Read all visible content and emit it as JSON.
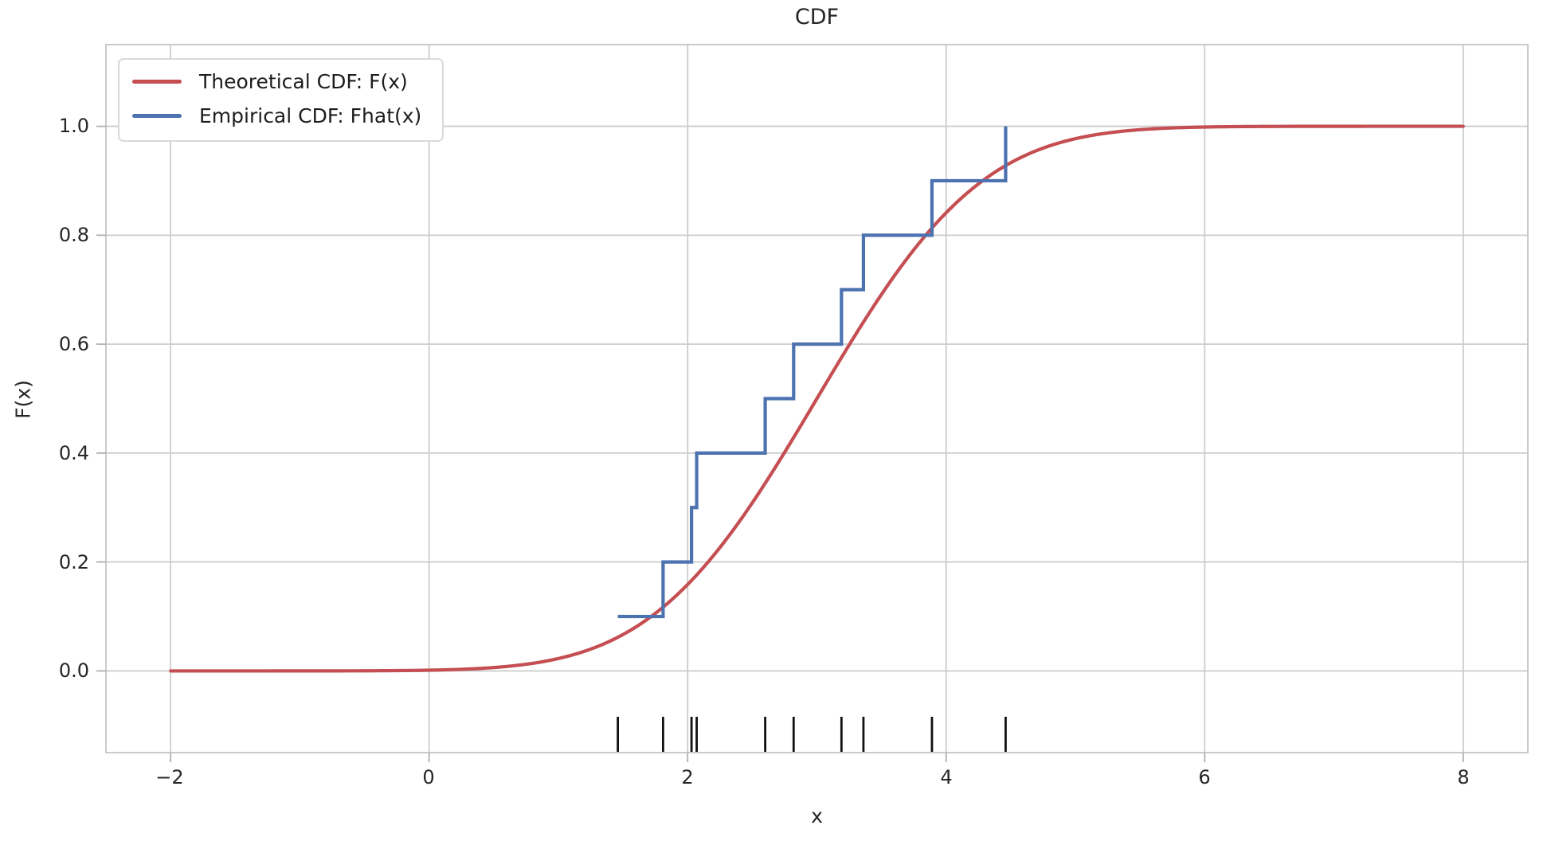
{
  "chart_data": {
    "type": "line",
    "title": "CDF",
    "xlabel": "x",
    "ylabel": "F(x)",
    "xlim": [
      -2.5,
      8.5
    ],
    "ylim": [
      -0.15,
      1.15
    ],
    "grid": true,
    "legend_position": "upper left",
    "x_ticks": [
      -2,
      0,
      2,
      4,
      6,
      8
    ],
    "x_tick_labels": [
      "−2",
      "0",
      "2",
      "4",
      "6",
      "8"
    ],
    "y_ticks": [
      0.0,
      0.2,
      0.4,
      0.6,
      0.8,
      1.0
    ],
    "y_tick_labels": [
      "0.0",
      "0.2",
      "0.4",
      "0.6",
      "0.8",
      "1.0"
    ],
    "series": [
      {
        "name": "Theoretical CDF: F(x)",
        "kind": "normal_cdf",
        "mean": 3,
        "sd": 1,
        "x_range": [
          -2,
          8
        ],
        "color": "#c44e52"
      },
      {
        "name": "Empirical CDF: Fhat(x)",
        "kind": "ecdf_step",
        "data_points": [
          1.46,
          1.81,
          2.03,
          2.07,
          2.6,
          2.82,
          3.19,
          3.36,
          3.89,
          4.46
        ],
        "levels": [
          0.1,
          0.2,
          0.3,
          0.4,
          0.5,
          0.6,
          0.7,
          0.8,
          0.9,
          1.0
        ],
        "color": "#4c72b0"
      }
    ],
    "rug": {
      "values": [
        1.46,
        1.81,
        2.03,
        2.07,
        2.6,
        2.82,
        3.19,
        3.36,
        3.89,
        4.46
      ],
      "color": "#111111"
    },
    "colors": {
      "grid": "#cccccc",
      "spine": "#c4c4c4",
      "tick": "#b0b0b0",
      "text": "#262626",
      "background": "#ffffff"
    }
  }
}
